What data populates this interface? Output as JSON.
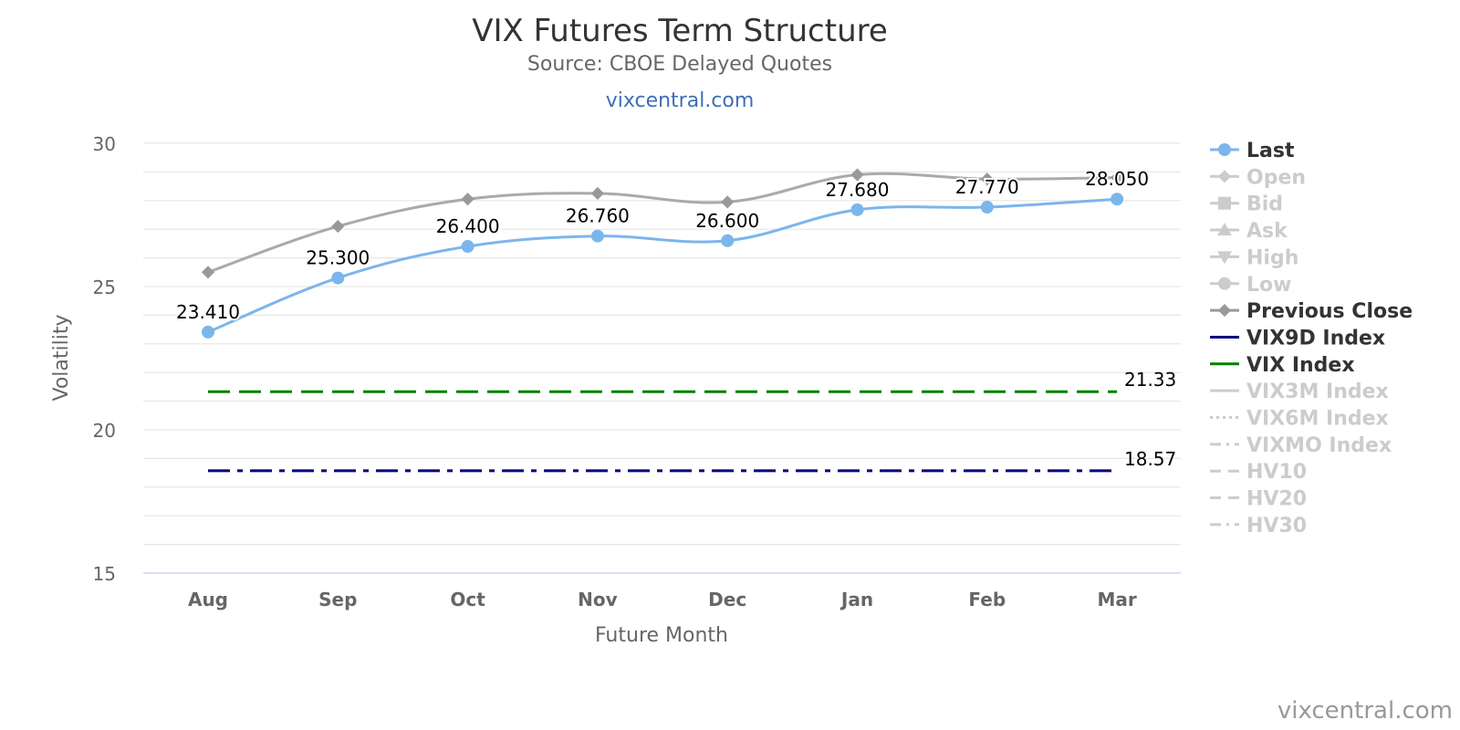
{
  "chart_data": {
    "type": "line",
    "title": "VIX Futures Term Structure",
    "subtitle": "Source: CBOE Delayed Quotes",
    "link_text": "vixcentral.com",
    "credit": "vixcentral.com",
    "xlabel": "Future Month",
    "ylabel": "Volatility",
    "categories": [
      "Aug",
      "Sep",
      "Oct",
      "Nov",
      "Dec",
      "Jan",
      "Feb",
      "Mar"
    ],
    "ylim": [
      15,
      30
    ],
    "yticks": [
      "15",
      "20",
      "25",
      "30"
    ],
    "grid": true,
    "legend_position": "right",
    "series": [
      {
        "name": "Last",
        "values": [
          23.41,
          25.3,
          26.4,
          26.76,
          26.6,
          27.68,
          27.77,
          28.05
        ],
        "labels": [
          "23.410",
          "25.300",
          "26.400",
          "26.760",
          "26.600",
          "27.680",
          "27.770",
          "28.050"
        ],
        "color": "#7cb5ec"
      },
      {
        "name": "Previous Close",
        "values": [
          25.5,
          27.1,
          28.05,
          28.25,
          27.95,
          28.9,
          28.75,
          28.8
        ],
        "color": "#aaaaaa"
      },
      {
        "name": "VIX Index",
        "value": 21.33,
        "label": "21.33",
        "color": "#008000"
      },
      {
        "name": "VIX9D Index",
        "value": 18.57,
        "label": "18.57",
        "color": "#000080"
      }
    ],
    "legend": [
      {
        "name": "Last",
        "active": true,
        "symbol": "circle-line",
        "color": "#7cb5ec"
      },
      {
        "name": "Open",
        "active": false,
        "symbol": "diamond"
      },
      {
        "name": "Bid",
        "active": false,
        "symbol": "square"
      },
      {
        "name": "Ask",
        "active": false,
        "symbol": "triangle"
      },
      {
        "name": "High",
        "active": false,
        "symbol": "triangle-down"
      },
      {
        "name": "Low",
        "active": false,
        "symbol": "circle"
      },
      {
        "name": "Previous Close",
        "active": true,
        "symbol": "diamond",
        "color": "#999999"
      },
      {
        "name": "VIX9D Index",
        "active": true,
        "symbol": "line",
        "color": "#000080"
      },
      {
        "name": "VIX Index",
        "active": true,
        "symbol": "line",
        "color": "#008000"
      },
      {
        "name": "VIX3M Index",
        "active": false,
        "symbol": "line"
      },
      {
        "name": "VIX6M Index",
        "active": false,
        "symbol": "dotted"
      },
      {
        "name": "VIXMO Index",
        "active": false,
        "symbol": "dash-dot"
      },
      {
        "name": "HV10",
        "active": false,
        "symbol": "dash"
      },
      {
        "name": "HV20",
        "active": false,
        "symbol": "dash"
      },
      {
        "name": "HV30",
        "active": false,
        "symbol": "dash-dot"
      }
    ]
  }
}
